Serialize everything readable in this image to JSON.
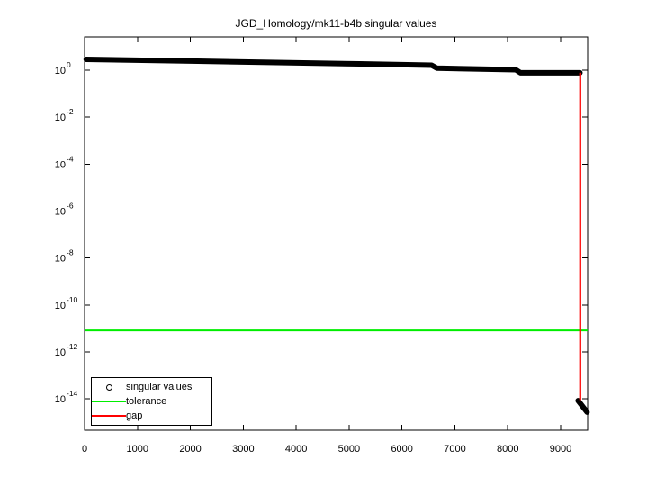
{
  "chart_data": {
    "type": "scatter",
    "title": "JGD_Homology/mk11-b4b singular values",
    "xlabel": "",
    "ylabel": "",
    "grid": false,
    "xlim": [
      0,
      9510
    ],
    "ylim_log10": [
      -15.34,
      1.42
    ],
    "x_ticks": [
      0,
      1000,
      2000,
      3000,
      4000,
      5000,
      6000,
      7000,
      8000,
      9000
    ],
    "y_tick_exponents": [
      0,
      -2,
      -4,
      -6,
      -8,
      -10,
      -12,
      -14
    ],
    "y_tick_labels": [
      "10^0",
      "10^-2",
      "10^-4",
      "10^-6",
      "10^-8",
      "10^-10",
      "10^-12",
      "10^-14"
    ],
    "series": [
      {
        "name": "singular values",
        "type": "scatter-band",
        "color": "#000000",
        "marker": "o",
        "stroke_px": 6,
        "note": "~9400 overlapping circle markers; y is log10(sigma)",
        "points": [
          [
            30,
            0.46
          ],
          [
            2140,
            0.385
          ],
          [
            3500,
            0.33
          ],
          [
            5200,
            0.27
          ],
          [
            6560,
            0.21
          ],
          [
            6660,
            0.085
          ],
          [
            8150,
            0.02
          ],
          [
            8240,
            -0.11
          ],
          [
            9365,
            -0.11
          ]
        ],
        "zero_points": [
          [
            9330,
            -14.08
          ],
          [
            9500,
            -14.57
          ]
        ]
      },
      {
        "name": "tolerance",
        "type": "hline",
        "color": "#00ee00",
        "stroke_px": 2,
        "y_log10": -11.09,
        "x_range": [
          0,
          9510
        ]
      },
      {
        "name": "gap",
        "type": "vline",
        "color": "#ff0000",
        "stroke_px": 2,
        "x": 9370,
        "y_log10_range": [
          -14.05,
          -0.11
        ]
      }
    ],
    "legend_position": "southwest"
  },
  "legend": {
    "items": [
      {
        "label": "singular values",
        "marker": "circle",
        "color": "#000000"
      },
      {
        "label": "tolerance",
        "marker": "line",
        "color": "#00ee00"
      },
      {
        "label": "gap",
        "marker": "line",
        "color": "#ff0000"
      }
    ]
  }
}
